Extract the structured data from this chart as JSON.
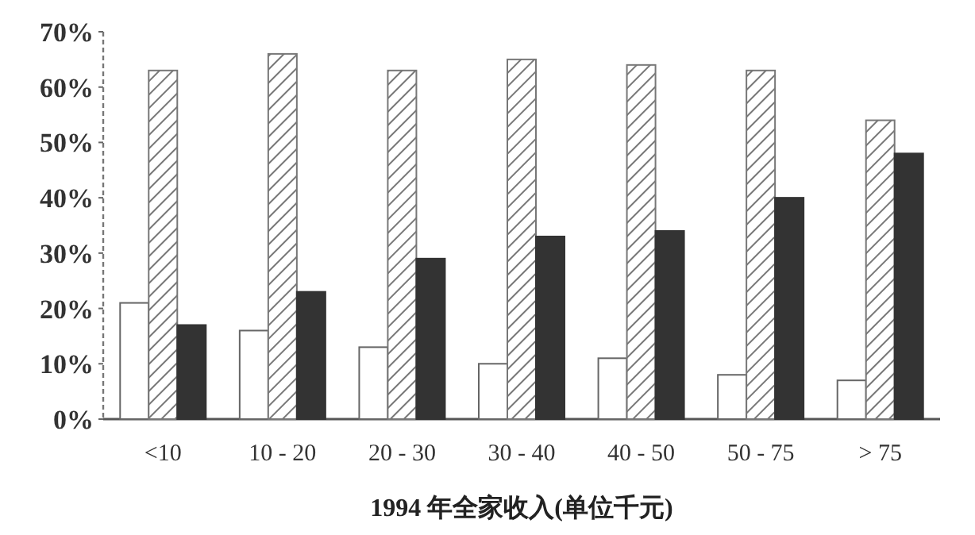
{
  "chart_data": {
    "type": "bar",
    "xlabel": "1994 年全家收入(单位千元)",
    "categories": [
      "<10",
      "10 - 20",
      "20 - 30",
      "30 - 40",
      "40 - 50",
      "50 - 75",
      "> 75"
    ],
    "series": [
      {
        "color": "#ffffff",
        "values": [
          21,
          16,
          13,
          10,
          11,
          8,
          7
        ]
      },
      {
        "color": "#777777",
        "values": [
          63,
          66,
          63,
          65,
          64,
          63,
          54
        ]
      },
      {
        "color": "#333333",
        "values": [
          17,
          23,
          29,
          33,
          34,
          40,
          48
        ]
      }
    ],
    "ylim": [
      0,
      70
    ],
    "yticks": [
      {
        "value": 0,
        "label": "0%"
      },
      {
        "value": 10,
        "label": "10%"
      },
      {
        "value": 20,
        "label": "20%"
      },
      {
        "value": 30,
        "label": "30%"
      },
      {
        "value": 40,
        "label": "40%"
      },
      {
        "value": 50,
        "label": "50%"
      },
      {
        "value": 60,
        "label": "60%"
      },
      {
        "value": 70,
        "label": "70%"
      }
    ]
  }
}
